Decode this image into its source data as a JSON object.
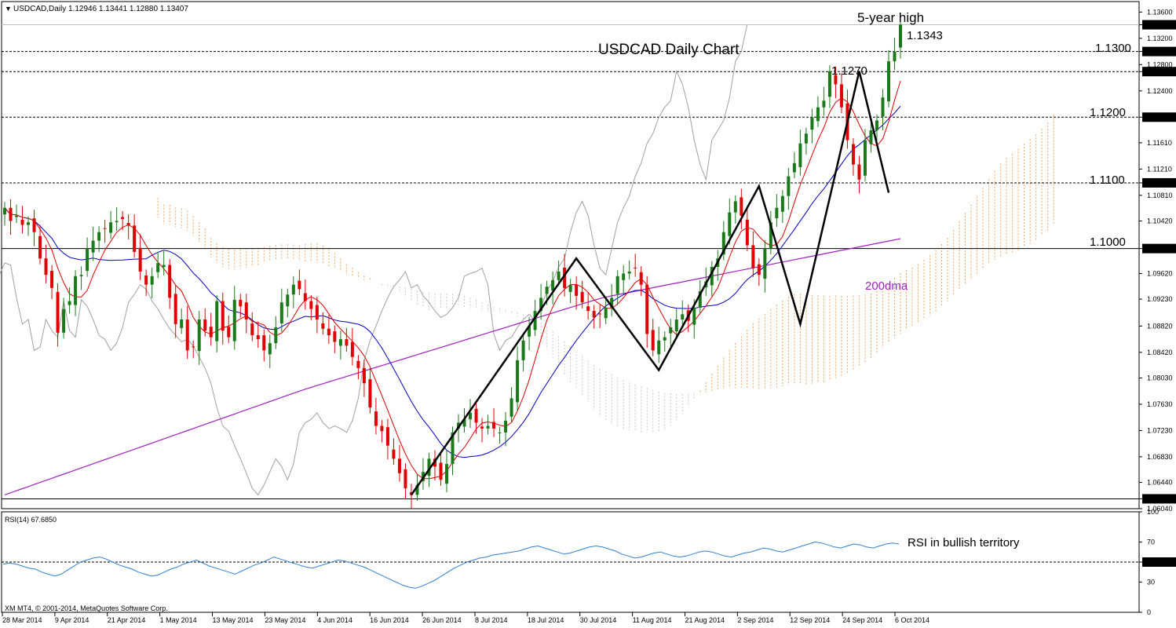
{
  "header": {
    "symbol_line": "USDCAD,Daily  1.12946 1.13441 1.12880 1.13407",
    "dropdown_glyph": "▼"
  },
  "footer": {
    "copyright": "XM MT4, © 2001-2014, MetaQuotes Software Corp."
  },
  "colors": {
    "bull": "#1a7a1a",
    "bear": "#e00000",
    "tenkan": "#e00000",
    "kijun": "#0000c8",
    "chikou": "#a0a0a0",
    "sma200": "#a020c0",
    "kumo": "#f4a460",
    "rsi": "#3080d0",
    "zigzag": "#000000",
    "price_box": "#000000"
  },
  "chart_data": [
    {
      "type": "candlestick",
      "title": "USDCAD Daily Chart",
      "symbol": "USDCAD",
      "timeframe": "Daily",
      "ohlc_header": {
        "open": 1.12946,
        "high": 1.13441,
        "low": 1.1288,
        "close": 1.13407
      },
      "ylim": [
        1.0604,
        1.1376
      ],
      "y_ticks": [
        "1.13600",
        "1.13407",
        "1.13200",
        "1.13000",
        "1.12800",
        "1.12694",
        "1.12400",
        "1.12000",
        "1.11610",
        "1.11210",
        "1.11000",
        "1.10810",
        "1.10420",
        "1.10000",
        "1.09620",
        "1.09230",
        "1.08820",
        "1.08420",
        "1.08030",
        "1.07630",
        "1.07230",
        "1.06830",
        "1.06440",
        "1.06190",
        "1.06040"
      ],
      "x_ticks": [
        "28 Mar 2014",
        "9 Apr 2014",
        "21 Apr 2014",
        "1 May 2014",
        "13 May 2014",
        "23 May 2014",
        "4 Jun 2014",
        "16 Jun 2014",
        "26 Jun 2014",
        "8 Jul 2014",
        "18 Jul 2014",
        "30 Jul 2014",
        "11 Aug 2014",
        "21 Aug 2014",
        "2 Sep 2014",
        "12 Sep 2014",
        "24 Sep 2014",
        "6 Oct 2014"
      ],
      "horizontal_levels": [
        {
          "value": 1.13,
          "label": "1.1300",
          "box": "1.13000"
        },
        {
          "value": 1.12694,
          "label": "",
          "box": "1.12694"
        },
        {
          "value": 1.12,
          "label": "1.1200",
          "box": "1.12000"
        },
        {
          "value": 1.11,
          "label": "1.1100",
          "box": "1.11000"
        },
        {
          "value": 1.1,
          "label": "1.1000",
          "box": "1.10000"
        },
        {
          "value": 1.0619,
          "label": "",
          "box": "1.06190"
        },
        {
          "value": 1.13407,
          "label": "",
          "box": "1.13407"
        }
      ],
      "annotations": [
        {
          "text": "5-year high"
        },
        {
          "text": "1.1343"
        },
        {
          "text": "1.1270"
        },
        {
          "text": "200dma"
        }
      ],
      "zigzag": [
        1.0625,
        1.0985,
        1.0815,
        1.1095,
        1.0885,
        1.127,
        1.1085
      ],
      "series": [
        {
          "kind": "close",
          "values": [
            1.1062,
            1.1042,
            1.105,
            1.1036,
            1.104,
            1.1025,
            1.0985,
            1.096,
            1.094,
            1.0872,
            1.0908,
            1.092,
            1.0958,
            1.096,
            1.1,
            1.1012,
            1.1025,
            1.103,
            1.104,
            1.1042,
            1.1045,
            1.1035,
            1.0995,
            1.0965,
            1.0945,
            1.0958,
            1.0978,
            1.0975,
            1.0925,
            1.0885,
            1.0892,
            1.0845,
            1.085,
            1.0892,
            1.0875,
            1.0865,
            1.092,
            1.0875,
            1.0865,
            1.0922,
            1.0912,
            1.0892,
            1.0868,
            1.0862,
            1.0845,
            1.0856,
            1.088,
            1.0918,
            1.093,
            1.0945,
            1.0938,
            1.092,
            1.0908,
            1.0892,
            1.0878,
            1.0868,
            1.0858,
            1.0862,
            1.0852,
            1.0835,
            1.0818,
            1.0795,
            1.0758,
            1.073,
            1.0722,
            1.07,
            1.068,
            1.0658,
            1.0635,
            1.0625,
            1.064,
            1.066,
            1.068,
            1.0668,
            1.0648,
            1.0672,
            1.072,
            1.0735,
            1.074,
            1.075,
            1.0735,
            1.0726,
            1.073,
            1.0726,
            1.072,
            1.0738,
            1.0772,
            1.083,
            1.086,
            1.0882,
            1.0905,
            1.0925,
            1.0942,
            1.0952,
            1.0965,
            1.094,
            1.0945,
            1.0928,
            1.0918,
            1.0905,
            1.0895,
            1.09,
            1.091,
            1.0925,
            1.0958,
            1.0962,
            1.0965,
            1.097,
            1.0945,
            1.087,
            1.0845,
            1.086,
            1.0865,
            1.088,
            1.0892,
            1.09,
            1.089,
            1.091,
            1.0935,
            1.095,
            1.0972,
            1.0985,
            1.1025,
            1.1055,
            1.1072,
            1.105,
            1.1005,
            1.097,
            1.096,
            1.1,
            1.104,
            1.1062,
            1.108,
            1.111,
            1.113,
            1.116,
            1.1175,
            1.12,
            1.1215,
            1.1225,
            1.127,
            1.125,
            1.1215,
            1.1165,
            1.1128,
            1.1105,
            1.1165,
            1.118,
            1.1195,
            1.123,
            1.1285,
            1.13,
            1.1341
          ]
        },
        {
          "kind": "sma200",
          "name": "200dma",
          "values": [
            1.0625,
            1.0785,
            1.0925,
            1.1015
          ]
        },
        {
          "kind": "rsi",
          "name": "RSI(14)",
          "last": 67.685,
          "values": [
            48,
            49,
            48,
            46,
            44,
            43,
            40,
            38,
            36,
            38,
            42,
            46,
            50,
            52,
            54,
            55,
            53,
            50,
            47,
            45,
            43,
            40,
            38,
            36,
            37,
            40,
            43,
            45,
            48,
            50,
            52,
            49,
            46,
            44,
            42,
            40,
            38,
            41,
            44,
            47,
            49,
            52,
            55,
            53,
            51,
            49,
            47,
            45,
            44,
            46,
            48,
            50,
            52,
            51,
            49,
            47,
            45,
            42,
            39,
            36,
            33,
            30,
            27,
            25,
            24,
            26,
            29,
            32,
            36,
            40,
            44,
            47,
            50,
            52,
            54,
            55,
            57,
            58,
            59,
            60,
            61,
            63,
            65,
            66,
            64,
            62,
            60,
            58,
            59,
            61,
            63,
            65,
            66,
            65,
            63,
            61,
            58,
            56,
            54,
            55,
            57,
            59,
            60,
            58,
            56,
            55,
            56,
            58,
            60,
            61,
            60,
            58,
            56,
            55,
            57,
            59,
            60,
            62,
            64,
            63,
            61,
            60,
            62,
            64,
            66,
            68,
            70,
            69,
            67,
            65,
            64,
            66,
            68,
            67,
            65,
            64,
            66,
            68,
            69,
            68
          ]
        }
      ],
      "rsi_panel": {
        "title": "RSI(14) 67.6850",
        "ylim": [
          0,
          100
        ],
        "y_ticks": [
          "100",
          "70",
          "50",
          "30",
          "0"
        ],
        "level": {
          "value": 50,
          "box": "50.0000"
        },
        "annotation": "RSI in bullish territory"
      }
    }
  ]
}
